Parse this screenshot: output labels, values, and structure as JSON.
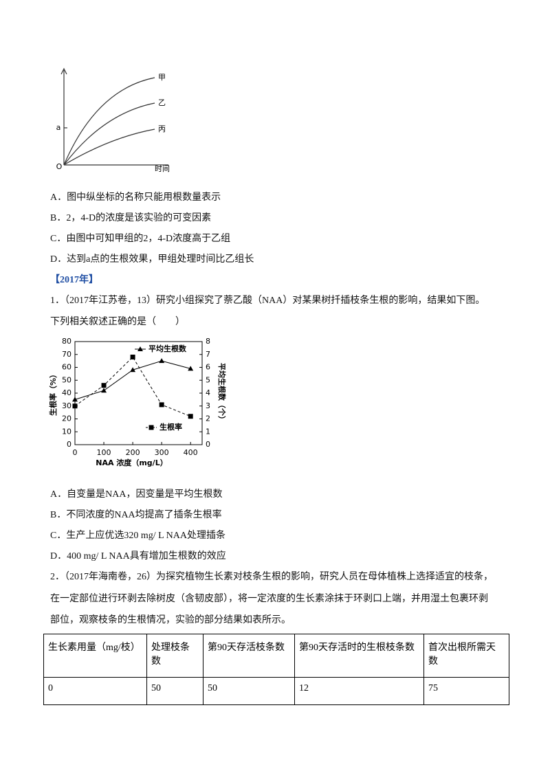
{
  "figure1": {
    "curve_labels": [
      "甲",
      "乙",
      "丙"
    ],
    "y_mark": "a",
    "origin": "O",
    "x_label": "时间"
  },
  "options1": [
    "A．图中纵坐标的名称只能用根数量表示",
    "B．2，4-D的浓度是该实验的可变因素",
    "C．由图中可知甲组的2，4-D浓度高于乙组",
    "D．达到a点的生根效果，甲组处理时间比乙组长"
  ],
  "section": "【2017年】",
  "question1": [
    "1．（2017年江苏卷，13）研究小组探究了萘乙酸（NAA）对某果树扦插枝条生根的影响，结果如下图。",
    "下列相关叙述正确的是（　　）"
  ],
  "chart_data": {
    "type": "line",
    "x_label": "NAA 浓度（mg/L）",
    "y_label": "生根率（%）",
    "y2_label": "平均生根数（个）",
    "x": [
      0,
      100,
      200,
      300,
      400
    ],
    "xlim": [
      0,
      440
    ],
    "xticks": [
      0,
      100,
      200,
      300,
      400
    ],
    "ylim": [
      0,
      80
    ],
    "yticks": [
      0,
      10,
      20,
      30,
      40,
      50,
      60,
      70,
      80
    ],
    "y2lim": [
      0,
      8
    ],
    "y2ticks": [
      0,
      1,
      2,
      3,
      4,
      5,
      6,
      7,
      8
    ],
    "series": [
      {
        "name": "平均生根数",
        "color": "#000000",
        "axis": "y2",
        "marker": "triangle",
        "dashed": false,
        "values": [
          3.5,
          4.2,
          5.8,
          6.5,
          5.9
        ]
      },
      {
        "name": "生根率",
        "color": "#000000",
        "axis": "y",
        "marker": "square",
        "dashed": true,
        "values": [
          30,
          46,
          68,
          31,
          22
        ]
      }
    ]
  },
  "options2": [
    "A．自变量是NAA，因变量是平均生根数",
    "B．不同浓度的NAA均提高了插条生根率",
    "C．生产上应优选320 mg/ L NAA处理插条",
    "D．400 mg/ L NAA具有增加生根数的效应"
  ],
  "question2": [
    "2．（2017年海南卷，26）为探究植物生长素对枝条生根的影响，研究人员在母体植株上选择适宜的枝条，",
    "在一定部位进行环剥去除树皮（含韧皮部），将一定浓度的生长素涂抹于环剥口上端，并用湿土包裹环剥",
    "部位，观察枝条的生根情况，实验的部分结果如表所示。"
  ],
  "table": {
    "header": [
      "生长素用量（mg/枝）",
      "处理枝条数",
      "第90天存活枝条数",
      "第90天存活时的生根枝条数",
      "首次出根所需天数"
    ],
    "rows": [
      [
        "0",
        "50",
        "50",
        "12",
        "75"
      ]
    ]
  }
}
